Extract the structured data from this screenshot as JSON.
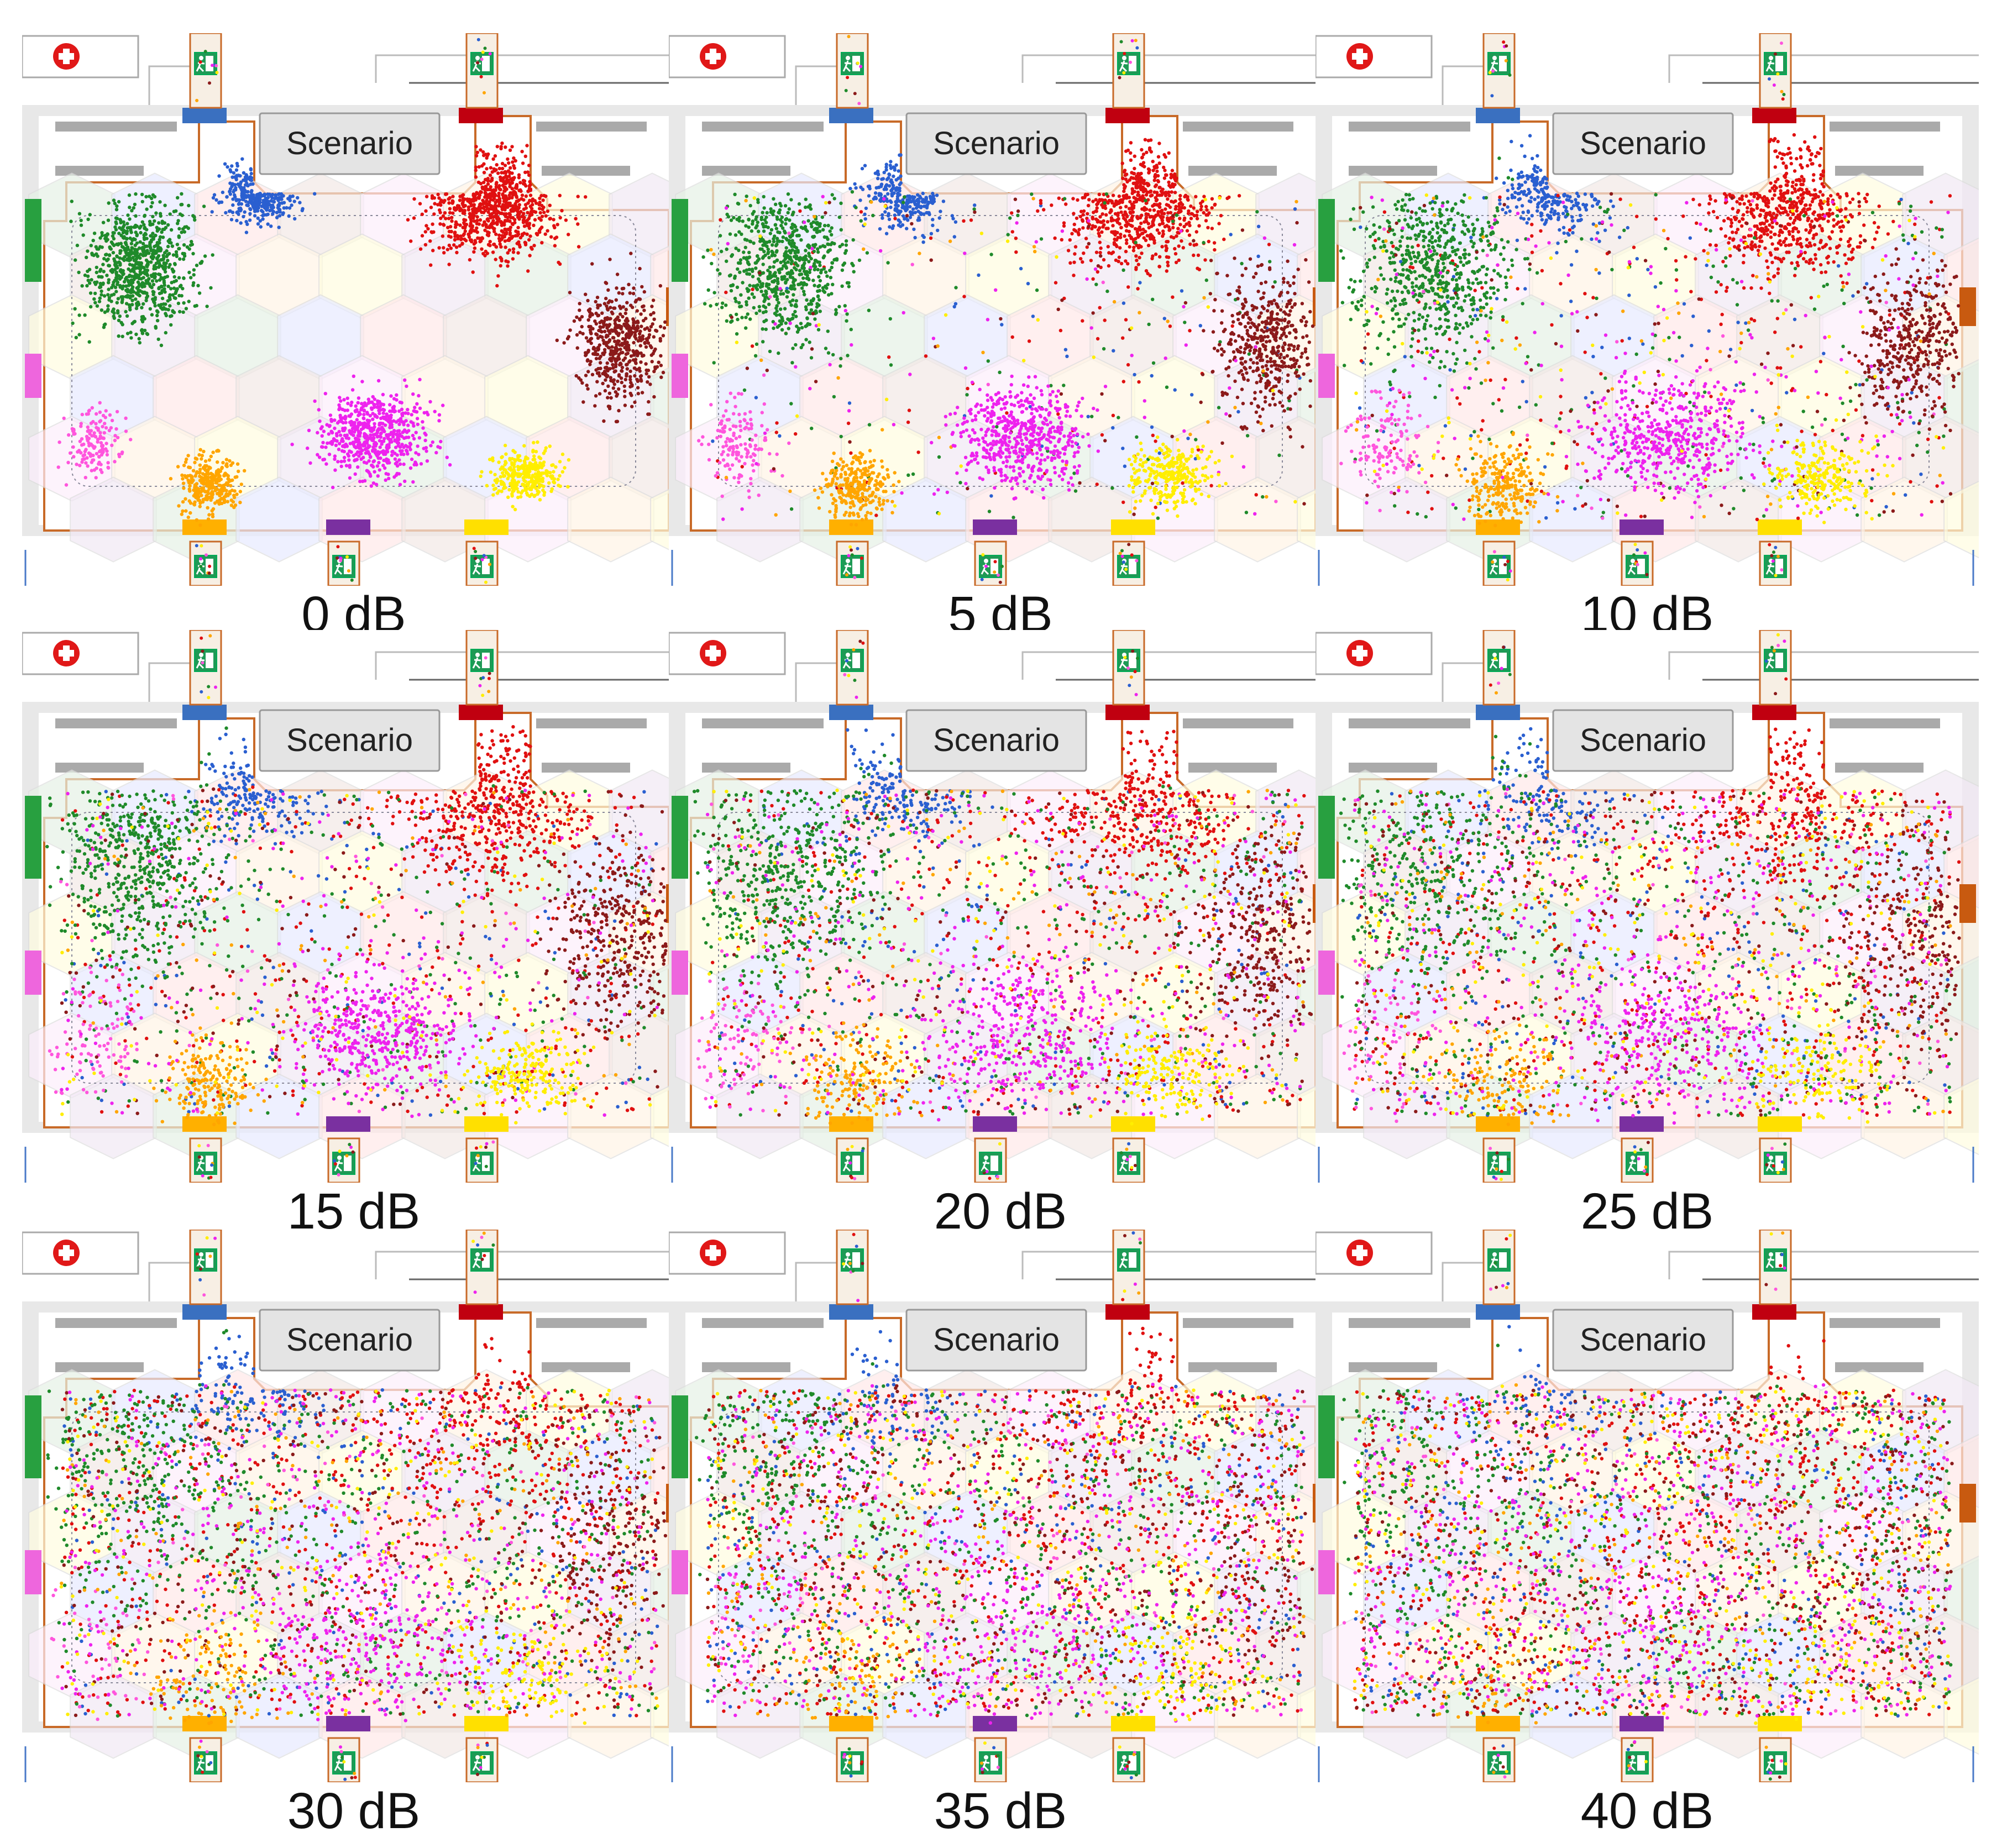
{
  "scenario_label": "Scenario",
  "first_aid_icon": "first-aid-cross-icon",
  "exit_icon": "emergency-exit-running-man-icon",
  "panels": [
    {
      "caption": "0 dB",
      "noise_db": 0
    },
    {
      "caption": "5 dB",
      "noise_db": 5
    },
    {
      "caption": "10 dB",
      "noise_db": 10
    },
    {
      "caption": "15 dB",
      "noise_db": 15
    },
    {
      "caption": "20 dB",
      "noise_db": 20
    },
    {
      "caption": "25 dB",
      "noise_db": 25
    },
    {
      "caption": "30 dB",
      "noise_db": 30
    },
    {
      "caption": "35 dB",
      "noise_db": 35
    },
    {
      "caption": "40 dB",
      "noise_db": 40
    }
  ],
  "exit_groups": [
    {
      "exit": "top-left",
      "color": "#2a5fd0"
    },
    {
      "exit": "top-right",
      "color": "#e01010"
    },
    {
      "exit": "left",
      "color": "#1f8a2a"
    },
    {
      "exit": "left-lower",
      "color": "#ff55dd"
    },
    {
      "exit": "right",
      "color": "#8b1a1a"
    },
    {
      "exit": "bottom-left",
      "color": "#ffa500"
    },
    {
      "exit": "bottom-mid",
      "color": "#ee22ee"
    },
    {
      "exit": "bottom-right",
      "color": "#ffee00"
    }
  ],
  "colors": {
    "wall": "#c86a28",
    "exit_green": "#1e9a55",
    "first_aid_red": "#e01818",
    "gate_top_left": "#3a70c0",
    "gate_top_right": "#c00010",
    "gate_left": "#28a040",
    "gate_left_lower": "#ee66dd",
    "gate_right": "#c85a10",
    "gate_bottom_left": "#ffb000",
    "gate_bottom_mid": "#7a30a0",
    "gate_bottom_right": "#ffe000"
  }
}
